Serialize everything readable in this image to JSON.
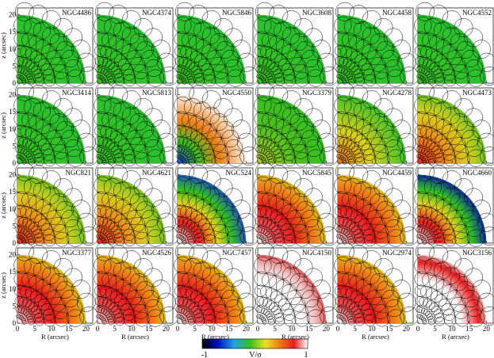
{
  "panels": [
    {
      "name": "NGC4486",
      "style": "green"
    },
    {
      "name": "NGC4374",
      "style": "green"
    },
    {
      "name": "NGC5846",
      "style": "green"
    },
    {
      "name": "NGC3608",
      "style": "green"
    },
    {
      "name": "NGC4458",
      "style": "green"
    },
    {
      "name": "NGC4552",
      "style": "green"
    },
    {
      "name": "NGC3414",
      "style": "green"
    },
    {
      "name": "NGC5813",
      "style": "green"
    },
    {
      "name": "NGC4550",
      "style": "split"
    },
    {
      "name": "NGC3379",
      "style": "greenyellow"
    },
    {
      "name": "NGC4278",
      "style": "yelloworange"
    },
    {
      "name": "NGC4473",
      "style": "orange"
    },
    {
      "name": "NGC821",
      "style": "orange"
    },
    {
      "name": "NGC4621",
      "style": "orange"
    },
    {
      "name": "NGC524",
      "style": "blueband"
    },
    {
      "name": "NGC5845",
      "style": "red"
    },
    {
      "name": "NGC4459",
      "style": "red"
    },
    {
      "name": "NGC4660",
      "style": "blueband2"
    },
    {
      "name": "NGC3377",
      "style": "red"
    },
    {
      "name": "NGC4526",
      "style": "red"
    },
    {
      "name": "NGC7457",
      "style": "red"
    },
    {
      "name": "NGC4150",
      "style": "white"
    },
    {
      "name": "NGC2974",
      "style": "red"
    },
    {
      "name": "NGC3156",
      "style": "redband"
    }
  ],
  "axes": {
    "xlabel": "R (arcsec)",
    "ylabel": "z (arcsec)",
    "xticks": [
      "0",
      "5",
      "10",
      "15",
      "20"
    ],
    "yticks": [
      "0",
      "5",
      "10",
      "15",
      "20"
    ]
  },
  "colorbar": {
    "label": "V/σ",
    "min_label": "-1",
    "max_label": "1"
  },
  "colors": {
    "blue": "#0018d0",
    "green": "#30c020",
    "yellow": "#e8d020",
    "orange": "#f08018",
    "red": "#e81c1c",
    "white": "#ffffff"
  }
}
